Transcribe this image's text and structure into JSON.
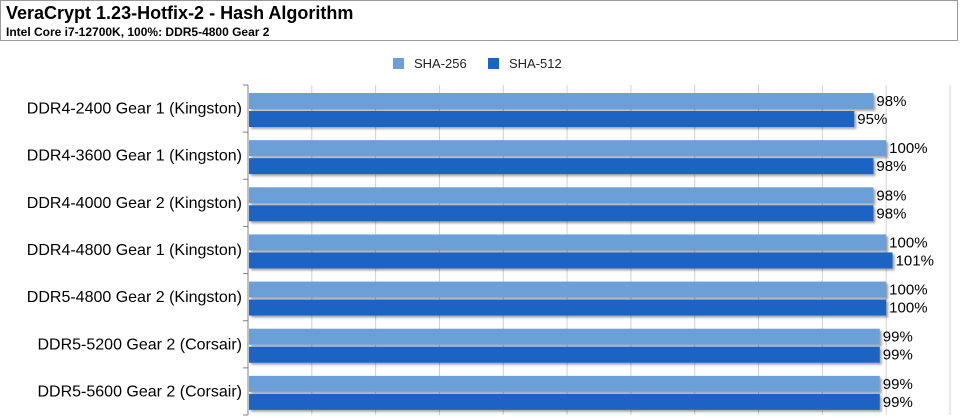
{
  "header": {
    "title": "VeraCrypt 1.23-Hotfix-2 - Hash Algorithm",
    "subtitle": "Intel Core i7-12700K, 100%: DDR5-4800 Gear 2"
  },
  "colors": {
    "series1": "#6a9fd8",
    "series2": "#1c64c4",
    "grid": "#d0d0d0",
    "axis": "#808080"
  },
  "chart_data": {
    "type": "bar",
    "orientation": "horizontal",
    "title": "VeraCrypt 1.23-Hotfix-2 - Hash Algorithm",
    "subtitle": "Intel Core i7-12700K, 100%: DDR5-4800 Gear 2",
    "categories": [
      "DDR4-2400 Gear 1 (Kingston)",
      "DDR4-3600 Gear 1 (Kingston)",
      "DDR4-4000 Gear 2 (Kingston)",
      "DDR4-4800 Gear 1 (Kingston)",
      "DDR5-4800 Gear 2 (Kingston)",
      "DDR5-5200 Gear 2 (Corsair)",
      "DDR5-5600 Gear 2 (Corsair)"
    ],
    "series": [
      {
        "name": "SHA-256",
        "values": [
          98,
          100,
          98,
          100,
          100,
          99,
          99
        ]
      },
      {
        "name": "SHA-512",
        "values": [
          95,
          98,
          98,
          101,
          100,
          99,
          99
        ]
      }
    ],
    "value_suffix": "%",
    "xlim": [
      0,
      110
    ],
    "grid": true,
    "legend": "top-center"
  }
}
